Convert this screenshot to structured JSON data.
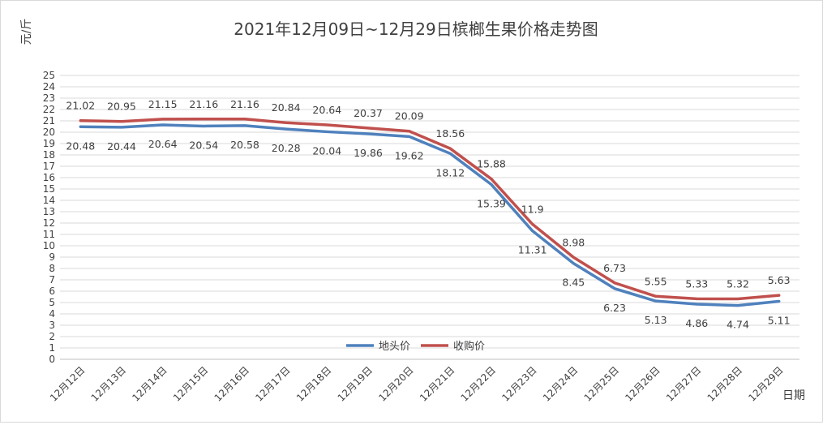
{
  "chart_data": {
    "type": "line",
    "title": "2021年12月09日~12月29日槟榔生果价格走势图",
    "xlabel": "日期",
    "ylabel": "元/斤",
    "ylim": [
      0,
      25
    ],
    "ytick_step": 1,
    "grid": true,
    "legend_position": "bottom-center",
    "categories": [
      "12月12日",
      "12月13日",
      "12月14日",
      "12月15日",
      "12月16日",
      "12月17日",
      "12月18日",
      "12月19日",
      "12月20日",
      "12月21日",
      "12月22日",
      "12月23日",
      "12月24日",
      "12月25日",
      "12月26日",
      "12月27日",
      "12月28日",
      "12月29日"
    ],
    "series": [
      {
        "name": "地头价",
        "color": "#4f81bd",
        "label_position": "below",
        "values": [
          20.48,
          20.44,
          20.64,
          20.54,
          20.58,
          20.28,
          20.04,
          19.86,
          19.62,
          18.12,
          15.39,
          11.31,
          8.45,
          6.23,
          5.13,
          4.86,
          4.74,
          5.11
        ]
      },
      {
        "name": "收购价",
        "color": "#c0504d",
        "label_position": "above",
        "values": [
          21.02,
          20.95,
          21.15,
          21.16,
          21.16,
          20.84,
          20.64,
          20.37,
          20.09,
          18.56,
          15.88,
          11.9,
          8.98,
          6.73,
          5.55,
          5.33,
          5.32,
          5.63
        ]
      }
    ]
  }
}
